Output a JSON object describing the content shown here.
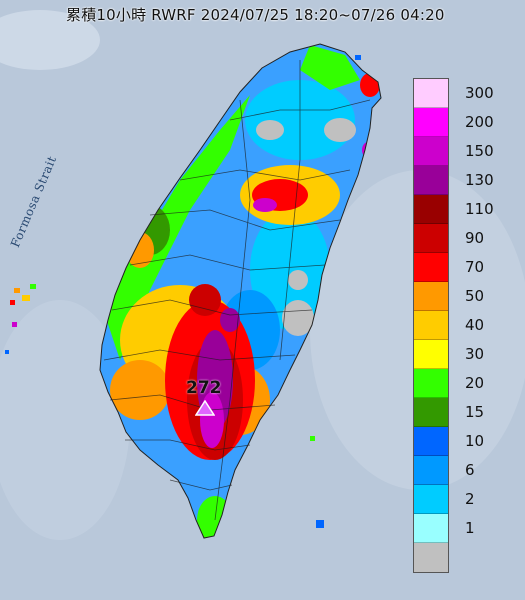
{
  "title": "累積10小時 RWRF 2024/07/25 18:20~07/26 04:20",
  "strait_label": "Formosa Strait",
  "max_marker": {
    "value": "272",
    "icon": "triangle-marker-icon"
  },
  "legend": [
    {
      "label": "300",
      "color": "#ffccff"
    },
    {
      "label": "200",
      "color": "#ff00ff"
    },
    {
      "label": "150",
      "color": "#cc00cc"
    },
    {
      "label": "130",
      "color": "#990099"
    },
    {
      "label": "110",
      "color": "#990000"
    },
    {
      "label": "90",
      "color": "#cc0000"
    },
    {
      "label": "70",
      "color": "#ff0000"
    },
    {
      "label": "50",
      "color": "#ff9900"
    },
    {
      "label": "40",
      "color": "#ffcc00"
    },
    {
      "label": "30",
      "color": "#ffff00"
    },
    {
      "label": "20",
      "color": "#33ff00"
    },
    {
      "label": "15",
      "color": "#339900"
    },
    {
      "label": "10",
      "color": "#0066ff"
    },
    {
      "label": "6",
      "color": "#0099ff"
    },
    {
      "label": "2",
      "color": "#00ccff"
    },
    {
      "label": "1",
      "color": "#99ffff"
    },
    {
      "label": "",
      "color": "#c0c0c0"
    }
  ],
  "colors": {
    "sea": "#b9c8da",
    "land_base": "#3aa0ff"
  }
}
